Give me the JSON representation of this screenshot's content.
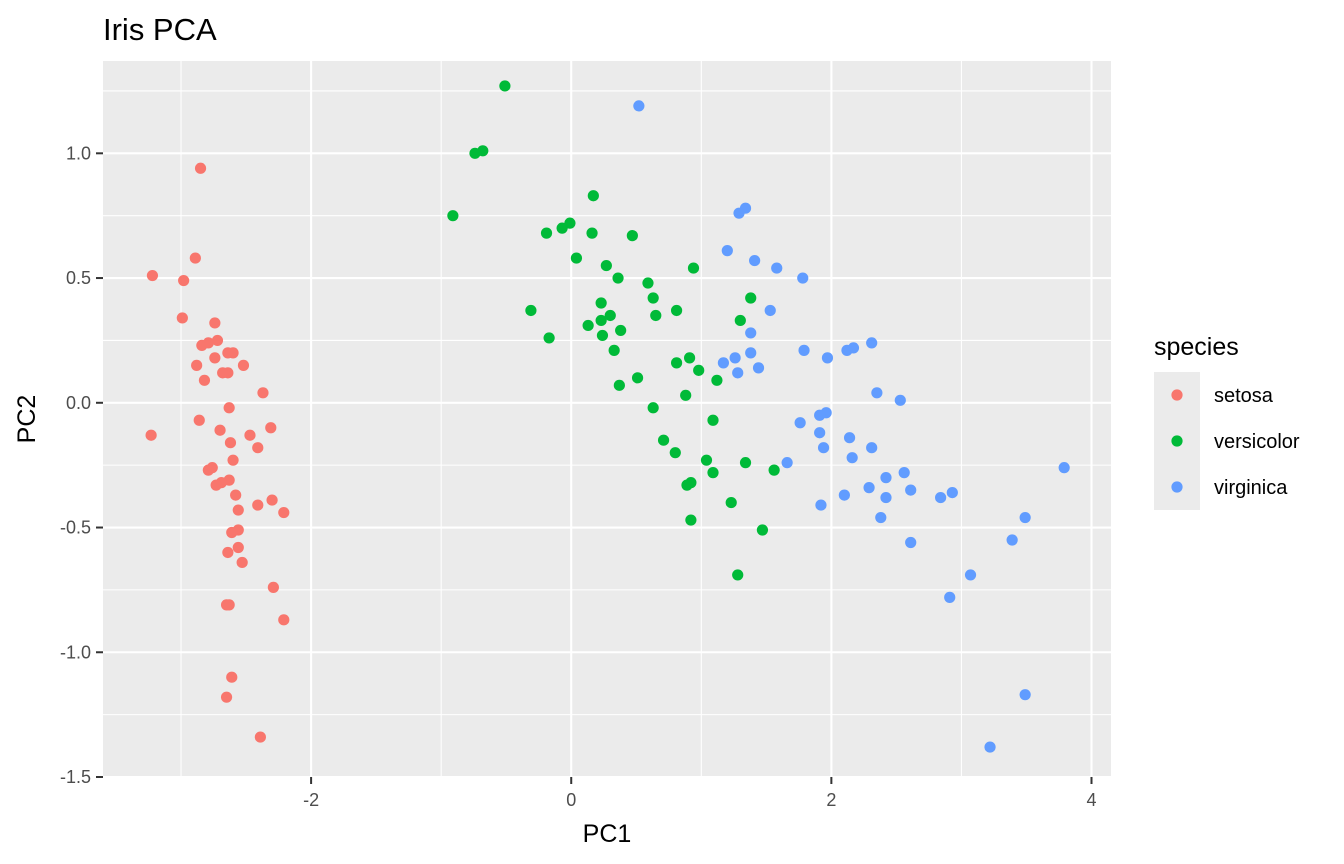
{
  "chart_data": {
    "type": "scatter",
    "title": "Iris PCA",
    "xlabel": "PC1",
    "ylabel": "PC2",
    "xlim": [
      -3.6,
      4.15
    ],
    "ylim": [
      -1.5,
      1.37
    ],
    "x_ticks": [
      -2,
      0,
      2,
      4
    ],
    "x_tick_labels": [
      "-2",
      "0",
      "2",
      "4"
    ],
    "y_ticks": [
      -1.5,
      -1.0,
      -0.5,
      0.0,
      0.5,
      1.0
    ],
    "y_tick_labels": [
      "-1.5",
      "-1.0",
      "-0.5",
      "0.0",
      "0.5",
      "1.0"
    ],
    "grid": true,
    "background": "#ebebeb",
    "legend": {
      "title": "species",
      "position": "right"
    },
    "series": [
      {
        "name": "setosa",
        "color": "#f8766d",
        "points": [
          [
            -3.22,
            0.51
          ],
          [
            -3.23,
            -0.13
          ],
          [
            -2.98,
            0.49
          ],
          [
            -2.99,
            0.34
          ],
          [
            -2.85,
            0.94
          ],
          [
            -2.89,
            0.58
          ],
          [
            -2.74,
            0.32
          ],
          [
            -2.84,
            0.23
          ],
          [
            -2.79,
            0.24
          ],
          [
            -2.72,
            0.25
          ],
          [
            -2.6,
            0.2
          ],
          [
            -2.64,
            0.2
          ],
          [
            -2.88,
            0.15
          ],
          [
            -2.74,
            0.18
          ],
          [
            -2.52,
            0.15
          ],
          [
            -2.64,
            0.12
          ],
          [
            -2.68,
            0.12
          ],
          [
            -2.82,
            0.09
          ],
          [
            -2.37,
            0.04
          ],
          [
            -2.63,
            -0.02
          ],
          [
            -2.86,
            -0.07
          ],
          [
            -2.7,
            -0.11
          ],
          [
            -2.31,
            -0.1
          ],
          [
            -2.47,
            -0.13
          ],
          [
            -2.6,
            -0.23
          ],
          [
            -2.41,
            -0.18
          ],
          [
            -2.62,
            -0.16
          ],
          [
            -2.79,
            -0.27
          ],
          [
            -2.76,
            -0.26
          ],
          [
            -2.63,
            -0.31
          ],
          [
            -2.69,
            -0.32
          ],
          [
            -2.73,
            -0.33
          ],
          [
            -2.58,
            -0.37
          ],
          [
            -2.3,
            -0.39
          ],
          [
            -2.41,
            -0.41
          ],
          [
            -2.56,
            -0.43
          ],
          [
            -2.21,
            -0.44
          ],
          [
            -2.56,
            -0.51
          ],
          [
            -2.61,
            -0.52
          ],
          [
            -2.56,
            -0.58
          ],
          [
            -2.64,
            -0.6
          ],
          [
            -2.53,
            -0.64
          ],
          [
            -2.29,
            -0.74
          ],
          [
            -2.65,
            -0.81
          ],
          [
            -2.63,
            -0.81
          ],
          [
            -2.21,
            -0.87
          ],
          [
            -2.61,
            -1.1
          ],
          [
            -2.65,
            -1.18
          ],
          [
            -2.39,
            -1.34
          ]
        ]
      },
      {
        "name": "versicolor",
        "color": "#00ba38",
        "points": [
          [
            -0.51,
            1.27
          ],
          [
            -0.68,
            1.01
          ],
          [
            -0.74,
            1.0
          ],
          [
            -0.91,
            0.75
          ],
          [
            0.17,
            0.83
          ],
          [
            -0.01,
            0.72
          ],
          [
            -0.07,
            0.7
          ],
          [
            0.16,
            0.68
          ],
          [
            -0.19,
            0.68
          ],
          [
            0.47,
            0.67
          ],
          [
            0.04,
            0.58
          ],
          [
            0.27,
            0.55
          ],
          [
            0.94,
            0.54
          ],
          [
            0.36,
            0.5
          ],
          [
            0.59,
            0.48
          ],
          [
            1.38,
            0.42
          ],
          [
            0.63,
            0.42
          ],
          [
            0.23,
            0.4
          ],
          [
            -0.31,
            0.37
          ],
          [
            0.81,
            0.37
          ],
          [
            0.65,
            0.35
          ],
          [
            0.3,
            0.35
          ],
          [
            0.23,
            0.33
          ],
          [
            1.3,
            0.33
          ],
          [
            0.13,
            0.31
          ],
          [
            0.38,
            0.29
          ],
          [
            0.24,
            0.27
          ],
          [
            -0.17,
            0.26
          ],
          [
            0.33,
            0.21
          ],
          [
            0.91,
            0.18
          ],
          [
            0.81,
            0.16
          ],
          [
            0.98,
            0.13
          ],
          [
            0.51,
            0.1
          ],
          [
            1.12,
            0.09
          ],
          [
            0.37,
            0.07
          ],
          [
            0.88,
            0.03
          ],
          [
            0.63,
            -0.02
          ],
          [
            1.09,
            -0.07
          ],
          [
            0.71,
            -0.15
          ],
          [
            0.8,
            -0.2
          ],
          [
            1.04,
            -0.23
          ],
          [
            1.34,
            -0.24
          ],
          [
            1.56,
            -0.27
          ],
          [
            1.09,
            -0.28
          ],
          [
            0.92,
            -0.32
          ],
          [
            0.89,
            -0.33
          ],
          [
            1.23,
            -0.4
          ],
          [
            0.92,
            -0.47
          ],
          [
            1.47,
            -0.51
          ],
          [
            1.28,
            -0.69
          ]
        ]
      },
      {
        "name": "virginica",
        "color": "#619cff",
        "points": [
          [
            0.52,
            1.19
          ],
          [
            1.34,
            0.78
          ],
          [
            1.29,
            0.76
          ],
          [
            1.2,
            0.61
          ],
          [
            1.41,
            0.57
          ],
          [
            1.58,
            0.54
          ],
          [
            1.78,
            0.5
          ],
          [
            1.53,
            0.37
          ],
          [
            1.38,
            0.28
          ],
          [
            2.31,
            0.24
          ],
          [
            2.17,
            0.22
          ],
          [
            1.79,
            0.21
          ],
          [
            2.12,
            0.21
          ],
          [
            1.38,
            0.2
          ],
          [
            1.97,
            0.18
          ],
          [
            1.26,
            0.18
          ],
          [
            1.17,
            0.16
          ],
          [
            1.44,
            0.14
          ],
          [
            1.28,
            0.12
          ],
          [
            2.35,
            0.04
          ],
          [
            2.53,
            0.01
          ],
          [
            1.96,
            -0.04
          ],
          [
            1.91,
            -0.05
          ],
          [
            1.76,
            -0.08
          ],
          [
            1.91,
            -0.12
          ],
          [
            2.14,
            -0.14
          ],
          [
            2.31,
            -0.18
          ],
          [
            1.94,
            -0.18
          ],
          [
            2.16,
            -0.22
          ],
          [
            1.66,
            -0.24
          ],
          [
            3.79,
            -0.26
          ],
          [
            2.56,
            -0.28
          ],
          [
            2.42,
            -0.3
          ],
          [
            2.29,
            -0.34
          ],
          [
            2.61,
            -0.35
          ],
          [
            2.93,
            -0.36
          ],
          [
            2.84,
            -0.38
          ],
          [
            2.42,
            -0.38
          ],
          [
            2.1,
            -0.37
          ],
          [
            1.92,
            -0.41
          ],
          [
            3.49,
            -0.46
          ],
          [
            2.38,
            -0.46
          ],
          [
            3.39,
            -0.55
          ],
          [
            2.61,
            -0.56
          ],
          [
            3.07,
            -0.69
          ],
          [
            2.91,
            -0.78
          ],
          [
            3.49,
            -1.17
          ],
          [
            3.22,
            -1.38
          ]
        ]
      }
    ]
  }
}
